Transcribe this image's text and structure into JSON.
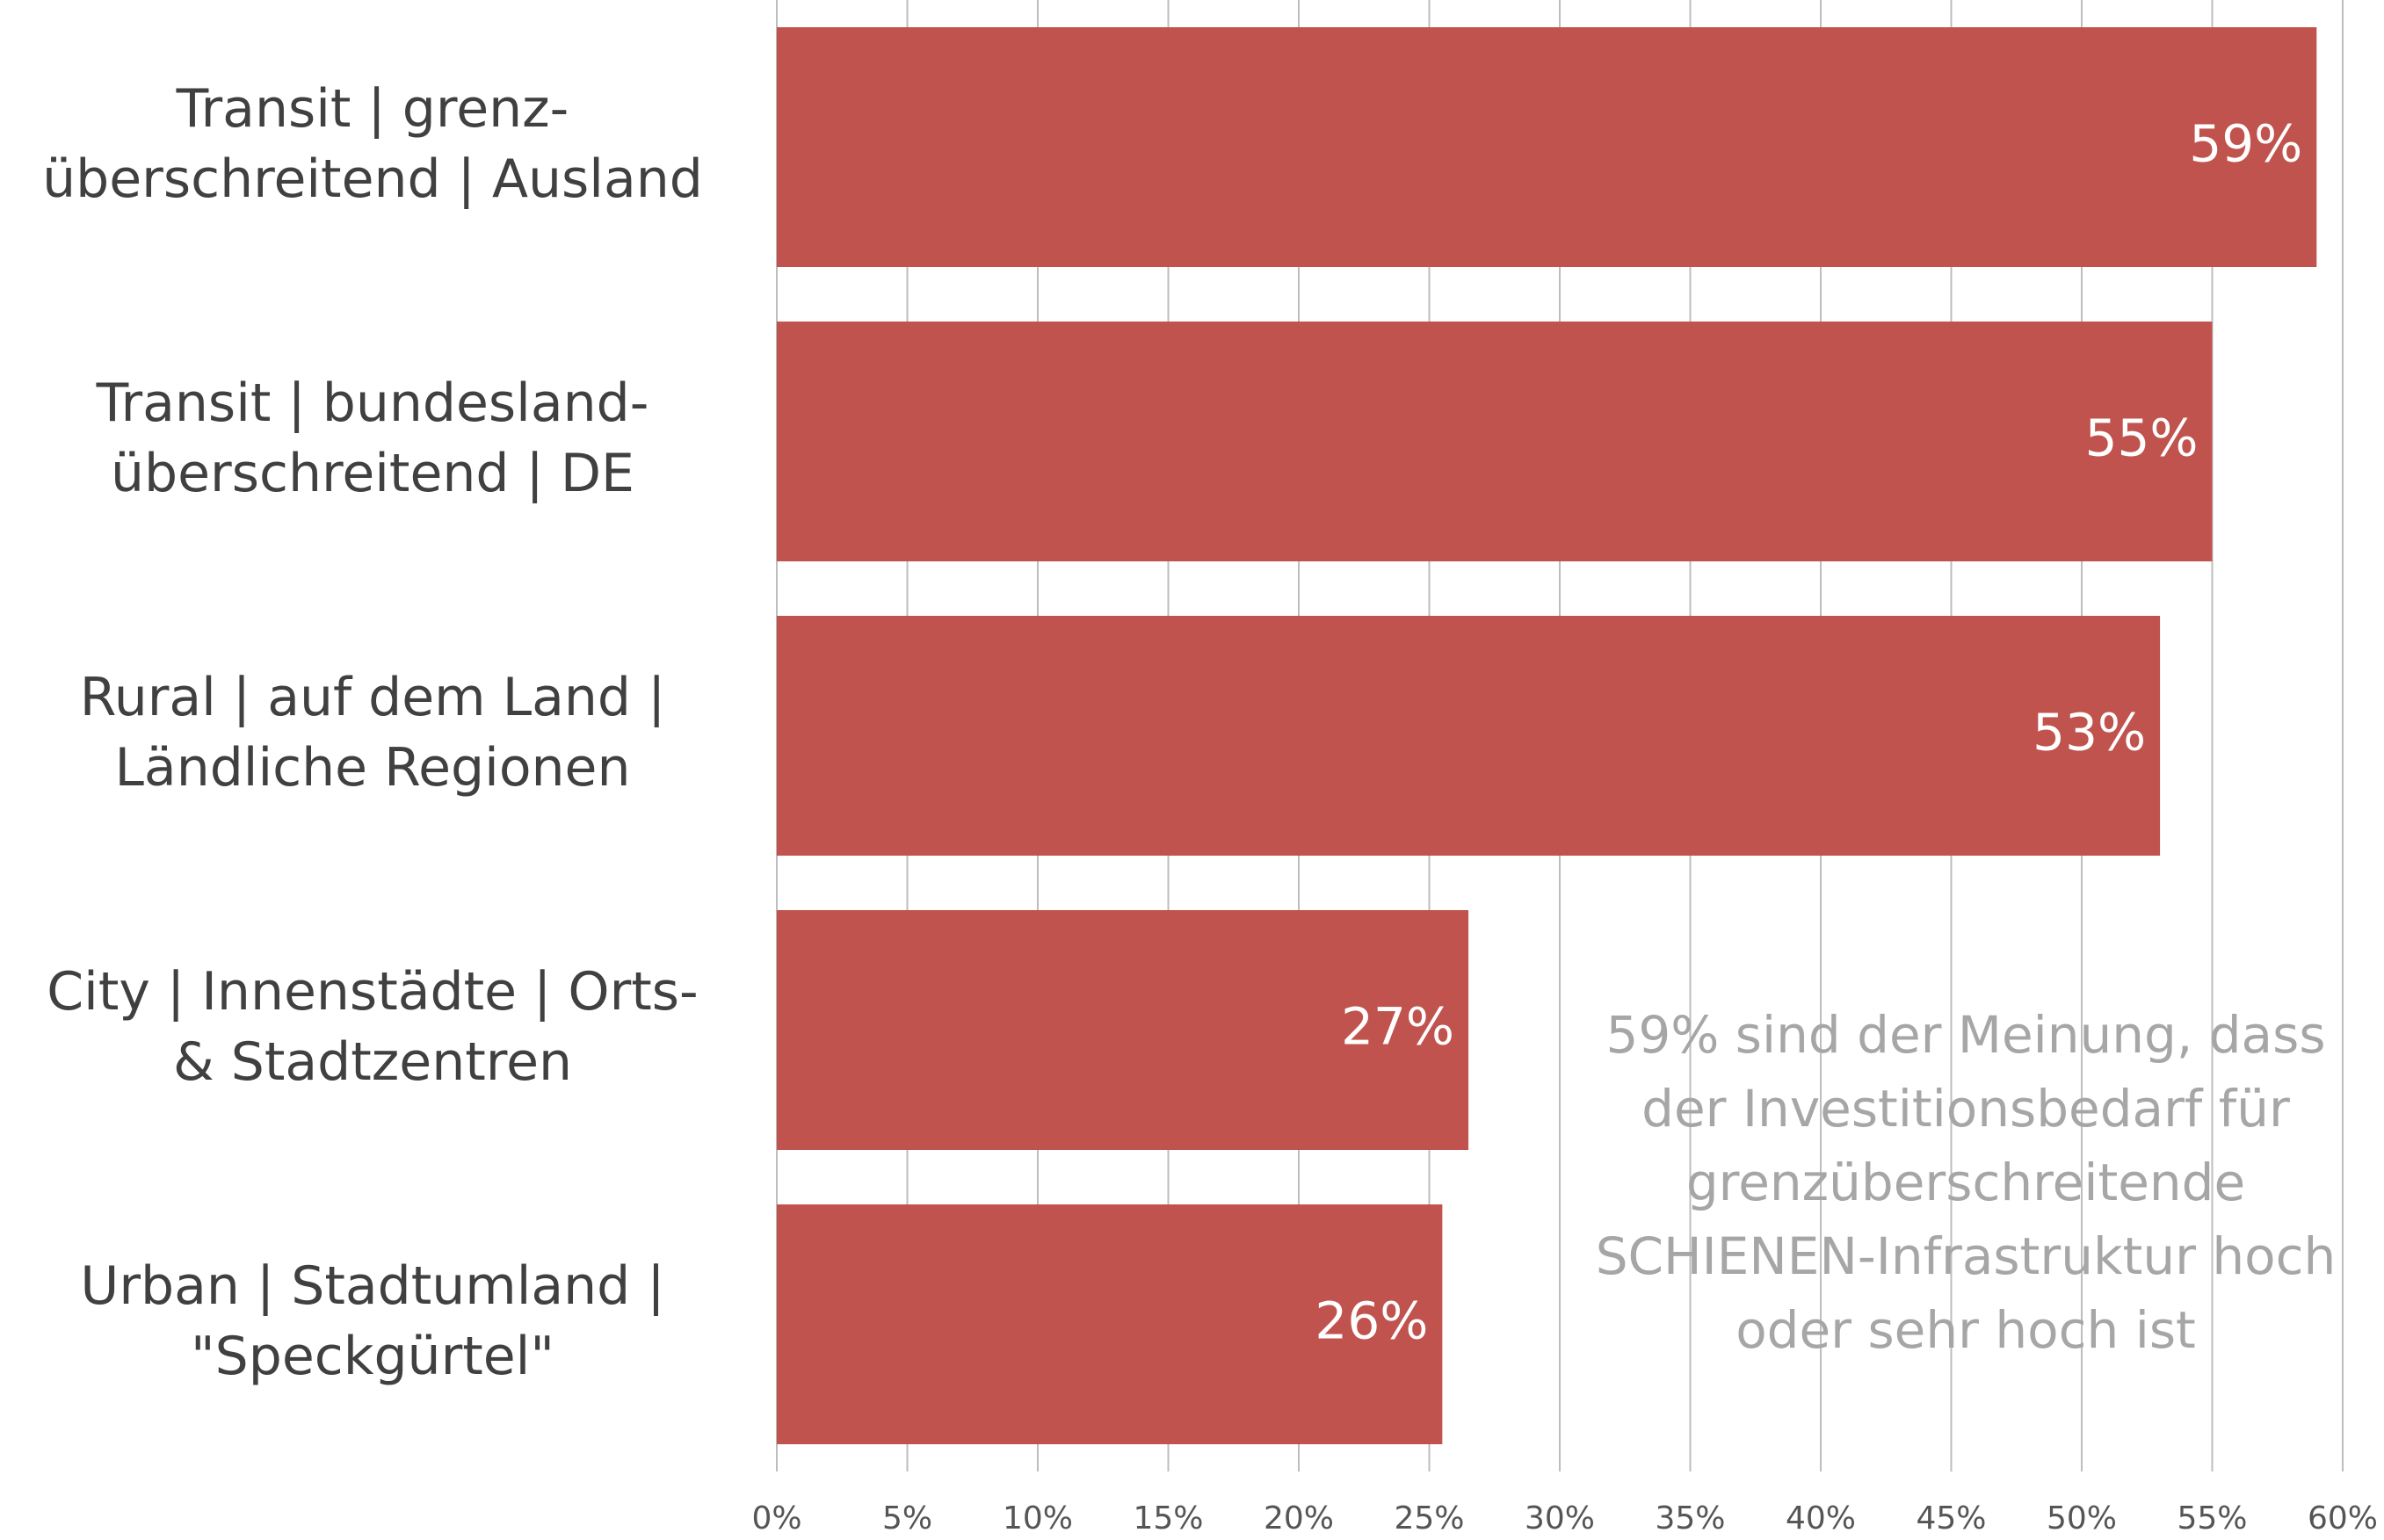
{
  "chart_data": {
    "type": "bar",
    "orientation": "horizontal",
    "categories": [
      [
        "Transit | grenz-",
        "überschreitend | Ausland"
      ],
      [
        "Transit | bundesland-",
        "überschreitend | DE"
      ],
      [
        "Rural | auf dem Land |",
        "Ländliche Regionen"
      ],
      [
        "City | Innenstädte | Orts-",
        "& Stadtzentren"
      ],
      [
        "Urban | Stadtumland |",
        "\"Speckgürtel\""
      ]
    ],
    "values": [
      59,
      55,
      53,
      26.5,
      25.5
    ],
    "value_labels": [
      "59%",
      "55%",
      "53%",
      "27%",
      "26%"
    ],
    "color": "#c0534d",
    "xlim": [
      0,
      60
    ],
    "xticks": [
      {
        "value": 0,
        "label": "0%"
      },
      {
        "value": 5,
        "label": "5%"
      },
      {
        "value": 10,
        "label": "10%"
      },
      {
        "value": 15,
        "label": "15%"
      },
      {
        "value": 20,
        "label": "20%"
      },
      {
        "value": 25,
        "label": "25%"
      },
      {
        "value": 30,
        "label": "30%"
      },
      {
        "value": 35,
        "label": "35%"
      },
      {
        "value": 40,
        "label": "40%"
      },
      {
        "value": 45,
        "label": "45%"
      },
      {
        "value": 50,
        "label": "50%"
      },
      {
        "value": 55,
        "label": "55%"
      },
      {
        "value": 60,
        "label": "60%"
      }
    ],
    "grid": true,
    "annotation": [
      "59% sind der Meinung, dass",
      "der Investitionsbedarf für",
      "grenzüberschreitende",
      "SCHIENEN-Infrastruktur hoch",
      "oder sehr hoch ist"
    ]
  }
}
